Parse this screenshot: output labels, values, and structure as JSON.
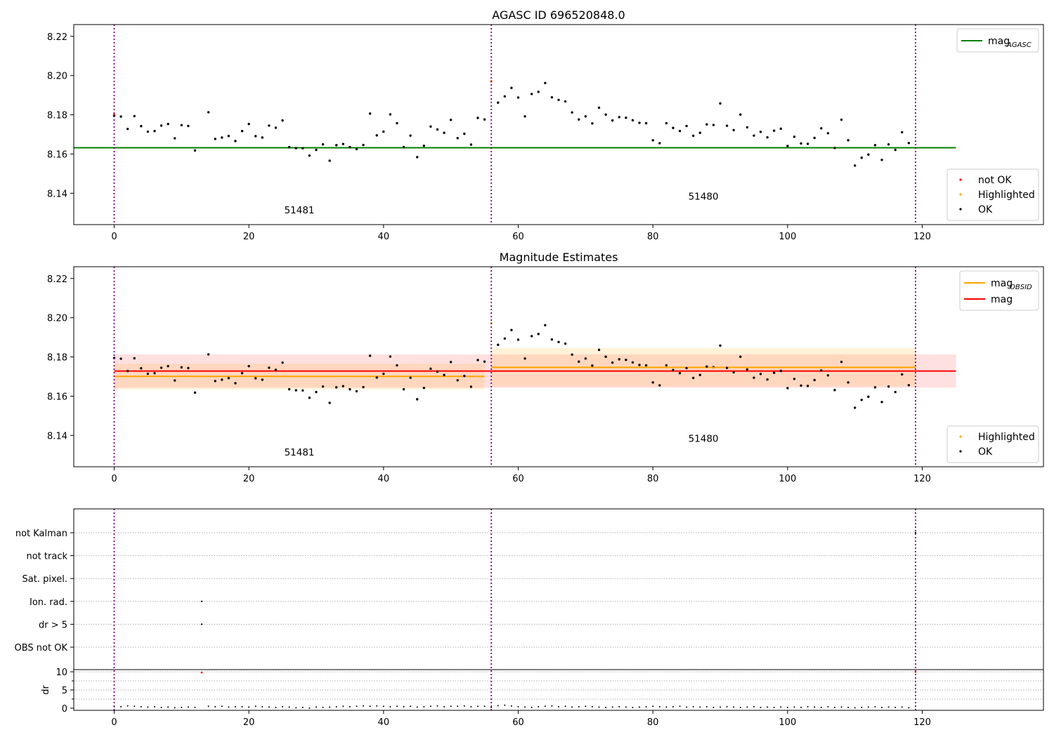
{
  "chart_data": [
    {
      "type": "scatter",
      "title": "AGASC ID 696520848.0",
      "ylim": [
        8.124,
        8.226
      ],
      "xlim": [
        -6,
        138
      ],
      "xticks": [
        0,
        20,
        40,
        60,
        80,
        100,
        120
      ],
      "yticks": [
        8.14,
        8.16,
        8.18,
        8.2,
        8.22
      ],
      "ytick_labels": [
        "8.14",
        "8.16",
        "8.18",
        "8.20",
        "8.22"
      ],
      "vlines": [
        0,
        56,
        119
      ],
      "annotations": [
        {
          "text": "51481",
          "x": 27.5,
          "y": 8.128
        },
        {
          "text": "51480",
          "x": 87.5,
          "y": 8.135
        }
      ],
      "hlines": [
        {
          "name": "mag_AGASC",
          "y": 8.1632,
          "x0": -6,
          "x1": 125,
          "color": "#008000"
        }
      ],
      "legend_lines": [
        {
          "label": "mag",
          "sub": "AGASC",
          "color": "#008000"
        }
      ],
      "legend_points": [
        {
          "label": "not OK",
          "color": "#ff0000"
        },
        {
          "label": "Highlighted",
          "color": "#ffa500"
        },
        {
          "label": "OK",
          "color": "#000000"
        }
      ],
      "points_ok": {
        "x": [
          0,
          1,
          2,
          3,
          4,
          5,
          6,
          7,
          8,
          9,
          10,
          11,
          12,
          14,
          15,
          16,
          17,
          18,
          19,
          20,
          21,
          22,
          23,
          24,
          25,
          26,
          27,
          28,
          29,
          30,
          31,
          32,
          33,
          34,
          35,
          36,
          37,
          38,
          39,
          40,
          41,
          42,
          43,
          44,
          45,
          46,
          47,
          48,
          49,
          50,
          51,
          52,
          53,
          54,
          55,
          57,
          58,
          59,
          60,
          61,
          62,
          63,
          64,
          65,
          66,
          67,
          68,
          69,
          70,
          71,
          72,
          73,
          74,
          75,
          76,
          77,
          78,
          79,
          80,
          81,
          82,
          83,
          84,
          85,
          86,
          87,
          88,
          89,
          90,
          91,
          92,
          93,
          94,
          95,
          96,
          97,
          98,
          99,
          100,
          101,
          102,
          103,
          104,
          105,
          106,
          107,
          108,
          109,
          110,
          111,
          112,
          113,
          114,
          115,
          116,
          117,
          118
        ],
        "y": [
          8.1795,
          8.1791,
          8.1728,
          8.1793,
          8.1742,
          8.1714,
          8.1717,
          8.1745,
          8.1753,
          8.168,
          8.1747,
          8.1743,
          8.1618,
          8.1813,
          8.1677,
          8.1684,
          8.1692,
          8.1666,
          8.1717,
          8.1753,
          8.1691,
          8.1684,
          8.1745,
          8.1734,
          8.1771,
          8.1635,
          8.163,
          8.1629,
          8.1592,
          8.1621,
          8.1649,
          8.1566,
          8.1645,
          8.1651,
          8.1635,
          8.1625,
          8.1646,
          8.1806,
          8.1695,
          8.1714,
          8.1802,
          8.1757,
          8.1635,
          8.1694,
          8.1584,
          8.1642,
          8.174,
          8.1725,
          8.1708,
          8.1774,
          8.1681,
          8.1703,
          8.1648,
          8.1784,
          8.1776,
          8.1862,
          8.1894,
          8.1937,
          8.1888,
          8.1792,
          8.1906,
          8.1917,
          8.1962,
          8.1889,
          8.1876,
          8.1868,
          8.1812,
          8.1776,
          8.1792,
          8.1756,
          8.1836,
          8.1801,
          8.1771,
          8.1788,
          8.1785,
          8.1772,
          8.1759,
          8.1757,
          8.167,
          8.1655,
          8.1757,
          8.1733,
          8.1717,
          8.1743,
          8.1693,
          8.1708,
          8.1751,
          8.1748,
          8.1858,
          8.1744,
          8.1722,
          8.1801,
          8.1736,
          8.1694,
          8.1713,
          8.1685,
          8.1719,
          8.1729,
          8.1641,
          8.1688,
          8.1654,
          8.1652,
          8.1682,
          8.1731,
          8.1706,
          8.1631,
          8.1775,
          8.167,
          8.1541,
          8.1581,
          8.1597,
          8.1645,
          8.157,
          8.1649,
          8.1621,
          8.1711,
          8.1656
        ]
      },
      "points_highlighted": {
        "x": [
          56
        ],
        "y": [
          8.1973
        ]
      },
      "points_not_ok": {
        "x": [
          0,
          56
        ],
        "y": [
          8.1803,
          8.1969
        ]
      }
    },
    {
      "type": "scatter",
      "title": "Magnitude Estimates",
      "ylim": [
        8.124,
        8.226
      ],
      "xlim": [
        -6,
        138
      ],
      "xticks": [
        0,
        20,
        40,
        60,
        80,
        100,
        120
      ],
      "yticks": [
        8.14,
        8.16,
        8.18,
        8.2,
        8.22
      ],
      "ytick_labels": [
        "8.14",
        "8.16",
        "8.18",
        "8.20",
        "8.22"
      ],
      "vlines": [
        0,
        56,
        119
      ],
      "annotations": [
        {
          "text": "51481",
          "x": 27.5,
          "y": 8.128
        },
        {
          "text": "51480",
          "x": 87.5,
          "y": 8.135
        }
      ],
      "bands": [
        {
          "x0": 0,
          "x1": 125,
          "y0": 8.1643,
          "y1": 8.1813,
          "color": "#ff0000",
          "opacity": 0.12
        },
        {
          "x0": 0,
          "x1": 55,
          "y0": 8.1635,
          "y1": 8.1765,
          "color": "#ffa500",
          "opacity": 0.15
        },
        {
          "x0": 56,
          "x1": 119,
          "y0": 8.165,
          "y1": 8.1845,
          "color": "#ffa500",
          "opacity": 0.15
        }
      ],
      "hlines": [
        {
          "name": "mag_OBSID 51481",
          "y": 8.1701,
          "x0": 0,
          "x1": 55,
          "color": "#ffa500"
        },
        {
          "name": "mag_OBSID 51480",
          "y": 8.1747,
          "x0": 56,
          "x1": 119,
          "color": "#ffa500"
        },
        {
          "name": "mag",
          "y": 8.1728,
          "x0": 0,
          "x1": 125,
          "color": "#ff0000"
        }
      ],
      "legend_lines": [
        {
          "label": "mag",
          "sub": "OBSID",
          "color": "#ffa500"
        },
        {
          "label": "mag",
          "sub": "",
          "color": "#ff0000"
        }
      ],
      "legend_points": [
        {
          "label": "Highlighted",
          "color": "#ffa500"
        },
        {
          "label": "OK",
          "color": "#000000"
        }
      ],
      "points_ok_ref": 0,
      "points_highlighted": {
        "x": [
          56,
          89
        ],
        "y": [
          8.1973,
          8.1745
        ]
      }
    },
    {
      "type": "scatter",
      "flags": {
        "categories": [
          "not Kalman",
          "not track",
          "Sat. pixel.",
          "Ion. rad.",
          "dr > 5",
          "OBS not OK"
        ],
        "points": [
          {
            "category": "not Kalman",
            "x": 119
          },
          {
            "category": "Ion. rad.",
            "x": 13
          },
          {
            "category": "dr > 5",
            "x": 13
          }
        ]
      },
      "dr": {
        "ylabel": "dr",
        "ylim": [
          -0.6,
          10.6
        ],
        "yticks": [
          0,
          5,
          10
        ],
        "ytick_labels": [
          "0",
          "5",
          "10"
        ],
        "x": [
          0,
          1,
          2,
          3,
          4,
          5,
          6,
          7,
          8,
          9,
          10,
          11,
          12,
          13,
          14,
          15,
          16,
          17,
          18,
          19,
          20,
          21,
          22,
          23,
          24,
          25,
          26,
          27,
          28,
          29,
          30,
          31,
          32,
          33,
          34,
          35,
          36,
          37,
          38,
          39,
          40,
          41,
          42,
          43,
          44,
          45,
          46,
          47,
          48,
          49,
          50,
          51,
          52,
          53,
          54,
          55,
          56,
          57,
          58,
          59,
          60,
          61,
          62,
          63,
          64,
          65,
          66,
          67,
          68,
          69,
          70,
          71,
          72,
          73,
          74,
          75,
          76,
          77,
          78,
          79,
          80,
          81,
          82,
          83,
          84,
          85,
          86,
          87,
          88,
          89,
          90,
          91,
          92,
          93,
          94,
          95,
          96,
          97,
          98,
          99,
          100,
          101,
          102,
          103,
          104,
          105,
          106,
          107,
          108,
          109,
          110,
          111,
          112,
          113,
          114,
          115,
          116,
          117,
          118,
          119
        ],
        "y": [
          0.4,
          0.4,
          0.6,
          0.5,
          0.4,
          0.3,
          0.4,
          0.2,
          0.3,
          0.1,
          0.2,
          0.3,
          0.2,
          9.8,
          0.5,
          0.4,
          0.5,
          0.3,
          0.4,
          0.4,
          0.3,
          0.5,
          0.4,
          0.3,
          0.2,
          0.4,
          0.3,
          0.1,
          0.2,
          0.0,
          0.3,
          0.2,
          0.3,
          0.4,
          0.5,
          0.4,
          0.5,
          0.6,
          0.5,
          0.6,
          0.5,
          0.4,
          0.5,
          0.4,
          0.5,
          0.3,
          0.4,
          0.5,
          0.6,
          0.4,
          0.5,
          0.5,
          0.6,
          0.4,
          0.5,
          0.5,
          0.2,
          0.7,
          0.8,
          0.6,
          0.4,
          0.3,
          0.2,
          0.4,
          0.5,
          0.6,
          0.4,
          0.5,
          0.3,
          0.4,
          0.5,
          0.4,
          0.3,
          0.2,
          0.3,
          0.4,
          0.3,
          0.2,
          0.3,
          0.4,
          0.5,
          0.4,
          0.3,
          0.4,
          0.5,
          0.3,
          0.4,
          0.3,
          0.4,
          0.2,
          0.3,
          0.4,
          0.3,
          0.2,
          0.3,
          0.4,
          0.2,
          0.3,
          0.2,
          0.3,
          0.2,
          0.3,
          0.2,
          0.4,
          0.3,
          0.2,
          0.4,
          0.2,
          0.3,
          0.2,
          0.1,
          0.2,
          0.3,
          0.4,
          0.2,
          0.3,
          0.2,
          0.3,
          0.1,
          10.0
        ],
        "not_ok_x": [
          13,
          119
        ],
        "not_ok_y": [
          9.8,
          10.0
        ]
      },
      "xlim": [
        -6,
        138
      ],
      "xticks": [
        0,
        20,
        40,
        60,
        80,
        100,
        120
      ],
      "vlines": [
        0,
        56,
        119
      ]
    }
  ]
}
